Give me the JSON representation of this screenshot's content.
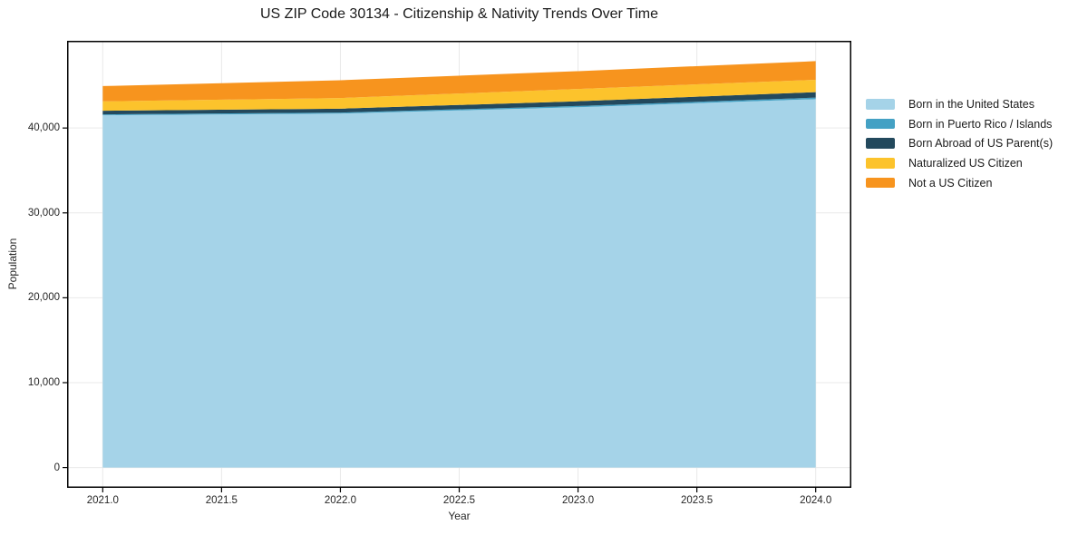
{
  "chart_data": {
    "type": "area",
    "stacked": true,
    "title": "US ZIP Code 30134 - Citizenship & Nativity Trends Over Time",
    "xlabel": "Year",
    "ylabel": "Population",
    "x": [
      2021,
      2022,
      2023,
      2024
    ],
    "series": [
      {
        "name": "Born in the United States",
        "color": "#a5d3e8",
        "values": [
          41500,
          41700,
          42450,
          43400
        ]
      },
      {
        "name": "Born in Puerto Rico / Islands",
        "color": "#44a1c4",
        "values": [
          110,
          120,
          150,
          180
        ]
      },
      {
        "name": "Born Abroad of US Parent(s)",
        "color": "#23495d",
        "values": [
          430,
          460,
          550,
          650
        ]
      },
      {
        "name": "Naturalized US Citizen",
        "color": "#fcc32c",
        "values": [
          1100,
          1250,
          1450,
          1450
        ]
      },
      {
        "name": "Not a US Citizen",
        "color": "#f7941e",
        "values": [
          1800,
          2100,
          2100,
          2200
        ]
      }
    ],
    "x_ticks": {
      "values": [
        2021.0,
        2021.5,
        2022.0,
        2022.5,
        2023.0,
        2023.5,
        2024.0
      ],
      "labels": [
        "2021.0",
        "2021.5",
        "2022.0",
        "2022.5",
        "2023.0",
        "2023.5",
        "2024.0"
      ]
    },
    "y_ticks": {
      "values": [
        0,
        10000,
        20000,
        30000,
        40000
      ],
      "labels": [
        "0",
        "10,000",
        "20,000",
        "30,000",
        "40,000"
      ]
    },
    "xlim": [
      2020.85,
      2024.15
    ],
    "ylim": [
      -2394,
      50274
    ],
    "grid": true,
    "grid_color": "#e9e9e9",
    "spine_color": "#000000",
    "legend_position": "right-outside"
  }
}
